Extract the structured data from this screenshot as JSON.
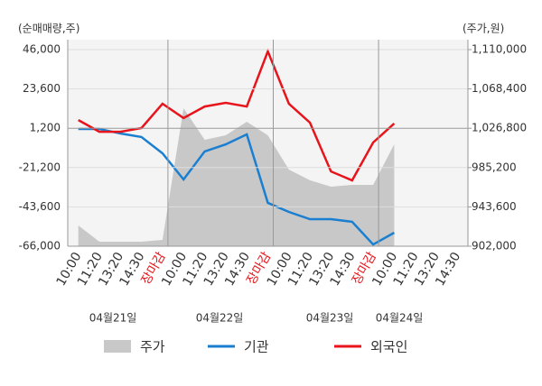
{
  "chart_data": {
    "type": "line",
    "y_axis_label": "(순매매량,주)",
    "y2_axis_label": "(주가,원)",
    "categories": [
      "10:00",
      "11:20",
      "13:20",
      "14:30",
      "장마감",
      "10:00",
      "11:20",
      "13:20",
      "14:30",
      "장마감",
      "10:00",
      "11:20",
      "13:20",
      "14:30",
      "장마감",
      "10:00",
      "11:20",
      "13:20",
      "14:30"
    ],
    "highlight_categories": [
      4,
      9,
      14
    ],
    "highlight_color": "#e8141b",
    "dates": [
      "04월21일",
      "04월22일",
      "04월23일",
      "04월24일"
    ],
    "series": [
      {
        "name": "주가",
        "color": "#c8c8c8",
        "axis": "y2",
        "kind": "area",
        "values": [
          923900,
          906800,
          906800,
          906800,
          908700,
          1048000,
          1014600,
          1019400,
          1033700,
          1019400,
          983100,
          971700,
          965000,
          966900,
          966900,
          1009800,
          null,
          null,
          null
        ]
      },
      {
        "name": "기관",
        "color": "#1a7fd0",
        "kind": "line",
        "values": [
          800,
          800,
          -1800,
          -3800,
          -13100,
          -28000,
          -12000,
          -8000,
          -2300,
          -41300,
          -46500,
          -50600,
          -50600,
          -52100,
          -65000,
          -58300,
          null,
          null,
          null
        ]
      },
      {
        "name": "외국인",
        "color": "#e8141b",
        "kind": "line",
        "values": [
          5900,
          -800,
          -800,
          1300,
          15200,
          7000,
          13600,
          15700,
          13600,
          45000,
          15200,
          4400,
          -23400,
          -28500,
          -6900,
          3900,
          null,
          null,
          null
        ]
      }
    ],
    "ylim": [
      -66000,
      46000
    ],
    "yticks": [
      {
        "value": 46000,
        "label": "46,000"
      },
      {
        "value": 23600,
        "label": "23,600"
      },
      {
        "value": 1200,
        "label": "1,200"
      },
      {
        "value": -21200,
        "label": "-21,200"
      },
      {
        "value": -43600,
        "label": "-43,600"
      },
      {
        "value": -66000,
        "label": "-66,000"
      }
    ],
    "y2lim": [
      902000,
      1110000
    ],
    "y2ticks": [
      {
        "value": 1110000,
        "label": "1,110,000"
      },
      {
        "value": 1068400,
        "label": "1,068,400"
      },
      {
        "value": 1026800,
        "label": "1,026,800"
      },
      {
        "value": 985200,
        "label": "985,200"
      },
      {
        "value": 943600,
        "label": "943,600"
      },
      {
        "value": 902000,
        "label": "902,000"
      }
    ],
    "grid": true
  }
}
